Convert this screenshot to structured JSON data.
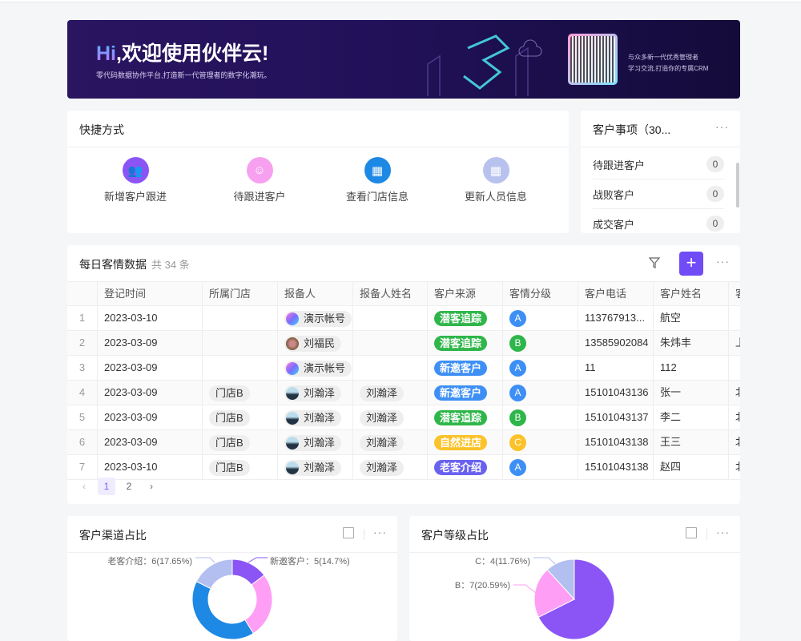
{
  "banner": {
    "hi": "Hi",
    "title": ",欢迎使用伙伴云!",
    "subtitle": "零代码数据协作平台,打造新一代管理者的数字化潮玩。",
    "qr_text_1": "与众多新一代优秀管理者",
    "qr_text_2": "学习交流,打造你的专属CRM"
  },
  "quick": {
    "title": "快捷方式",
    "items": [
      {
        "label": "新增客户跟进",
        "icon": "add-user-icon",
        "color": "#8b55f5"
      },
      {
        "label": "待跟进客户",
        "icon": "user-icon",
        "color": "#f7a0f0"
      },
      {
        "label": "查看门店信息",
        "icon": "building-icon",
        "color": "#1e88e5"
      },
      {
        "label": "更新人员信息",
        "icon": "grid-icon",
        "color": "#b7c2ef"
      }
    ]
  },
  "customer_items": {
    "title": "客户事项（30...",
    "rows": [
      {
        "label": "待跟进客户",
        "count": "0"
      },
      {
        "label": "战败客户",
        "count": "0"
      },
      {
        "label": "成交客户",
        "count": "0"
      }
    ]
  },
  "daily": {
    "title": "每日客情数据",
    "count": "共 34 条",
    "columns": [
      "",
      "登记时间",
      "所属门店",
      "报备人",
      "报备人姓名",
      "客户来源",
      "客情分级",
      "客户电话",
      "客户姓名",
      "客"
    ],
    "rows": [
      {
        "i": "1",
        "date": "2023-03-10",
        "store": "",
        "reporter": "演示帐号",
        "av": "demo",
        "rname": "",
        "source": "潜客追踪",
        "level": "A",
        "phone": "113767913...",
        "name": "航空",
        "extra": ""
      },
      {
        "i": "2",
        "date": "2023-03-09",
        "store": "",
        "reporter": "刘福民",
        "av": "photo1",
        "rname": "",
        "source": "潜客追踪",
        "level": "B",
        "phone": "13585902084",
        "name": "朱炜丰",
        "extra": "上"
      },
      {
        "i": "3",
        "date": "2023-03-09",
        "store": "",
        "reporter": "演示帐号",
        "av": "demo",
        "rname": "",
        "source": "新邀客户",
        "level": "A",
        "phone": "11",
        "name": "112",
        "extra": ""
      },
      {
        "i": "4",
        "date": "2023-03-09",
        "store": "门店B",
        "reporter": "刘瀚泽",
        "av": "photo2",
        "rname": "刘瀚泽",
        "source": "新邀客户",
        "level": "A",
        "phone": "15101043136",
        "name": "张一",
        "extra": "北"
      },
      {
        "i": "5",
        "date": "2023-03-09",
        "store": "门店B",
        "reporter": "刘瀚泽",
        "av": "photo2",
        "rname": "刘瀚泽",
        "source": "潜客追踪",
        "level": "B",
        "phone": "15101043137",
        "name": "李二",
        "extra": "北"
      },
      {
        "i": "6",
        "date": "2023-03-09",
        "store": "门店B",
        "reporter": "刘瀚泽",
        "av": "photo2",
        "rname": "刘瀚泽",
        "source": "自然进店",
        "level": "C",
        "phone": "15101043138",
        "name": "王三",
        "extra": "北"
      },
      {
        "i": "7",
        "date": "2023-03-10",
        "store": "门店B",
        "reporter": "刘瀚泽",
        "av": "photo2",
        "rname": "刘瀚泽",
        "source": "老客介绍",
        "level": "A",
        "phone": "15101043138",
        "name": "赵四",
        "extra": "北"
      }
    ],
    "source_colors": {
      "潜客追踪": "#2fb64a",
      "新邀客户": "#3d8ff5",
      "自然进店": "#fbc22a",
      "老客介绍": "#6a62ef"
    },
    "level_colors": {
      "A": "#3d8ff5",
      "B": "#2fb64a",
      "C": "#fbc22a"
    },
    "pages": [
      "1",
      "2"
    ],
    "current_page": "1"
  },
  "chart_data": [
    {
      "type": "pie",
      "title": "客户渠道占比",
      "donut": true,
      "slices": [
        {
          "label": "新邀客户：5(14.7%)",
          "value": 5,
          "color": "#8b55f5"
        },
        {
          "label": "",
          "value": 9,
          "color": "#ff9ef5"
        },
        {
          "label": "",
          "value": 14,
          "color": "#1e88e5"
        },
        {
          "label": "老客介绍：6(17.65%)",
          "value": 6,
          "color": "#b3bff0"
        }
      ]
    },
    {
      "type": "pie",
      "title": "客户等级占比",
      "donut": false,
      "slices": [
        {
          "label": "",
          "value": 23,
          "color": "#8b55f5"
        },
        {
          "label": "B：7(20.59%)",
          "value": 7,
          "color": "#ff9ef5"
        },
        {
          "label": "C：4(11.76%)",
          "value": 4,
          "color": "#b3bff0"
        }
      ]
    }
  ]
}
